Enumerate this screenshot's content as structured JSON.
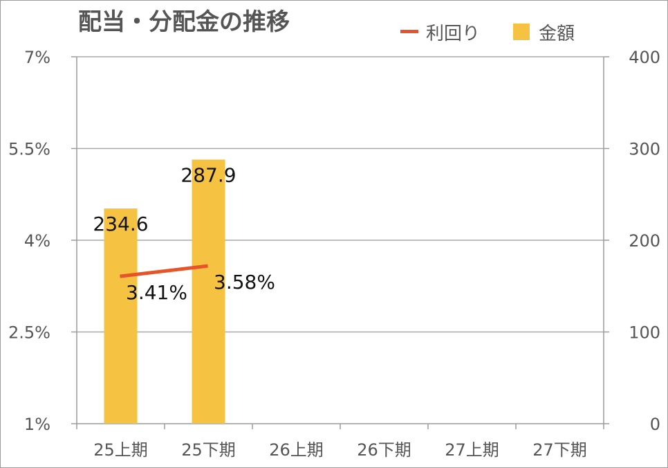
{
  "chart_data": {
    "type": "bar",
    "title": "配当・分配金の推移",
    "categories": [
      "25上期",
      "25下期",
      "26上期",
      "26下期",
      "27上期",
      "27下期"
    ],
    "series": [
      {
        "name": "金額",
        "kind": "bar",
        "axis": "right",
        "color": "#f5c242",
        "values": [
          234.6,
          287.9,
          null,
          null,
          null,
          null
        ],
        "labels": [
          "234.6",
          "287.9"
        ]
      },
      {
        "name": "利回り",
        "kind": "line",
        "axis": "left",
        "color": "#e8542a",
        "values": [
          3.41,
          3.58,
          null,
          null,
          null,
          null
        ],
        "labels": [
          "3.41%",
          "3.58%"
        ]
      }
    ],
    "y_left": {
      "min": 1,
      "max": 7,
      "ticks": [
        1,
        2.5,
        4,
        5.5,
        7
      ],
      "tick_labels": [
        "1%",
        "2.5%",
        "4%",
        "5.5%",
        "7%"
      ]
    },
    "y_right": {
      "min": 0,
      "max": 400,
      "ticks": [
        0,
        100,
        200,
        300,
        400
      ],
      "tick_labels": [
        "0",
        "100",
        "200",
        "300",
        "400"
      ]
    },
    "grid": true,
    "legend": "top-right"
  }
}
